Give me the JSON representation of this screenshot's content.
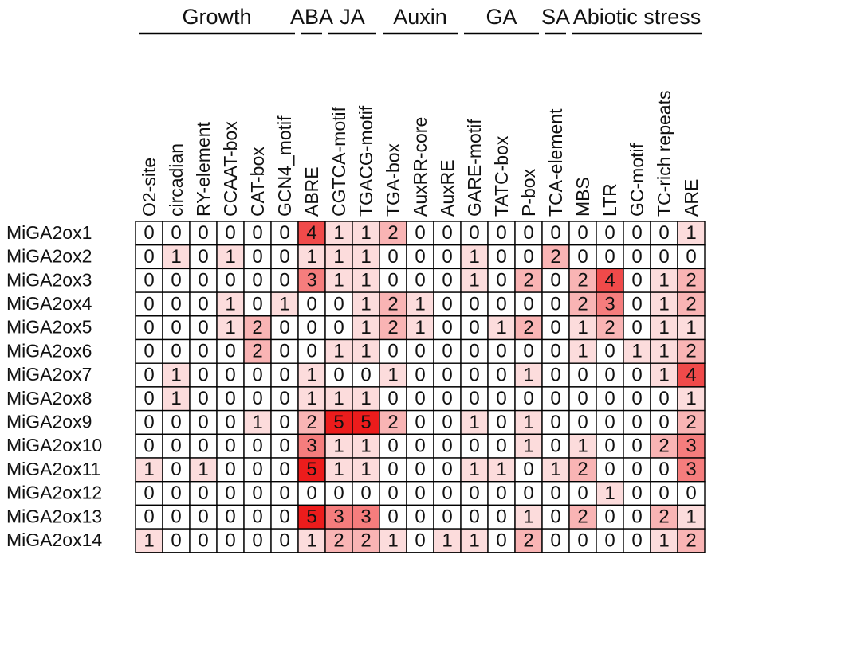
{
  "chart_data": {
    "type": "heatmap",
    "groups": [
      {
        "name": "Growth",
        "columns": [
          "O2-site",
          "circadian",
          "RY-element",
          "CCAAT-box",
          "CAT-box",
          "GCN4_motif"
        ]
      },
      {
        "name": "ABA",
        "columns": [
          "ABRE"
        ]
      },
      {
        "name": "JA",
        "columns": [
          "CGTCA-motif",
          "TGACG-motif"
        ]
      },
      {
        "name": "Auxin",
        "columns": [
          "TGA-box",
          "AuxRR-core",
          "AuxRE"
        ]
      },
      {
        "name": "GA",
        "columns": [
          "GARE-motif",
          "TATC-box",
          "P-box"
        ]
      },
      {
        "name": "SA",
        "columns": [
          "TCA-element"
        ]
      },
      {
        "name": "Abiotic stress",
        "columns": [
          "MBS",
          "LTR",
          "GC-motif",
          "TC-rich repeats",
          "ARE"
        ]
      }
    ],
    "columns": [
      "O2-site",
      "circadian",
      "RY-element",
      "CCAAT-box",
      "CAT-box",
      "GCN4_motif",
      "ABRE",
      "CGTCA-motif",
      "TGACG-motif",
      "TGA-box",
      "AuxRR-core",
      "AuxRE",
      "GARE-motif",
      "TATC-box",
      "P-box",
      "TCA-element",
      "MBS",
      "LTR",
      "GC-motif",
      "TC-rich repeats",
      "ARE"
    ],
    "rows": [
      "MiGA2ox1",
      "MiGA2ox2",
      "MiGA2ox3",
      "MiGA2ox4",
      "MiGA2ox5",
      "MiGA2ox6",
      "MiGA2ox7",
      "MiGA2ox8",
      "MiGA2ox9",
      "MiGA2ox10",
      "MiGA2ox11",
      "MiGA2ox12",
      "MiGA2ox13",
      "MiGA2ox14"
    ],
    "values": [
      [
        0,
        0,
        0,
        0,
        0,
        0,
        4,
        1,
        1,
        2,
        0,
        0,
        0,
        0,
        0,
        0,
        0,
        0,
        0,
        0,
        1
      ],
      [
        0,
        1,
        0,
        1,
        0,
        0,
        1,
        1,
        1,
        0,
        0,
        0,
        1,
        0,
        0,
        2,
        0,
        0,
        0,
        0,
        0
      ],
      [
        0,
        0,
        0,
        0,
        0,
        0,
        3,
        1,
        1,
        0,
        0,
        0,
        1,
        0,
        2,
        0,
        2,
        4,
        0,
        1,
        2
      ],
      [
        0,
        0,
        0,
        1,
        0,
        1,
        0,
        0,
        1,
        2,
        1,
        0,
        0,
        0,
        0,
        0,
        2,
        3,
        0,
        1,
        2
      ],
      [
        0,
        0,
        0,
        1,
        2,
        0,
        0,
        0,
        1,
        2,
        1,
        0,
        0,
        1,
        2,
        0,
        1,
        2,
        0,
        1,
        1
      ],
      [
        0,
        0,
        0,
        0,
        2,
        0,
        0,
        1,
        1,
        0,
        0,
        0,
        0,
        0,
        0,
        0,
        1,
        0,
        1,
        1,
        2
      ],
      [
        0,
        1,
        0,
        0,
        0,
        0,
        1,
        0,
        0,
        1,
        0,
        0,
        0,
        0,
        1,
        0,
        0,
        0,
        0,
        1,
        4
      ],
      [
        0,
        1,
        0,
        0,
        0,
        0,
        1,
        1,
        1,
        0,
        0,
        0,
        0,
        0,
        0,
        0,
        0,
        0,
        0,
        0,
        1
      ],
      [
        0,
        0,
        0,
        0,
        1,
        0,
        2,
        5,
        5,
        2,
        0,
        0,
        1,
        0,
        1,
        0,
        0,
        0,
        0,
        0,
        2
      ],
      [
        0,
        0,
        0,
        0,
        0,
        0,
        3,
        1,
        1,
        0,
        0,
        0,
        0,
        0,
        1,
        0,
        1,
        0,
        0,
        2,
        3
      ],
      [
        1,
        0,
        1,
        0,
        0,
        0,
        5,
        1,
        1,
        0,
        0,
        0,
        1,
        1,
        0,
        1,
        2,
        0,
        0,
        0,
        3
      ],
      [
        0,
        0,
        0,
        0,
        0,
        0,
        0,
        0,
        0,
        0,
        0,
        0,
        0,
        0,
        0,
        0,
        0,
        1,
        0,
        0,
        0
      ],
      [
        0,
        0,
        0,
        0,
        0,
        0,
        5,
        3,
        3,
        0,
        0,
        0,
        0,
        0,
        1,
        0,
        2,
        0,
        0,
        2,
        1
      ],
      [
        1,
        0,
        0,
        0,
        0,
        0,
        1,
        2,
        2,
        1,
        0,
        1,
        1,
        0,
        2,
        0,
        0,
        0,
        0,
        1,
        2
      ]
    ],
    "color_scale": {
      "0": "#ffffff",
      "1": "#fcdcdc",
      "2": "#f9b4b4",
      "3": "#f57d7d",
      "4": "#f04a4a",
      "5": "#ec1c1c"
    }
  }
}
